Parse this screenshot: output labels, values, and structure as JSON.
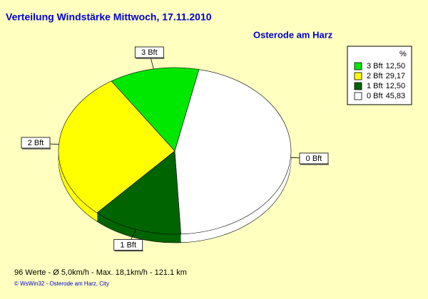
{
  "chart_data": {
    "type": "pie",
    "title": "Verteilung Windstärke  Mittwoch, 17.11.2010",
    "subtitle": "Osterode am Harz",
    "categories": [
      "3 Bft",
      "2 Bft",
      "1 Bft",
      "0 Bft"
    ],
    "values": [
      12.5,
      29.17,
      12.5,
      45.83
    ],
    "value_labels": [
      "12,50",
      "29,17",
      "12,50",
      "45,83"
    ],
    "colors": [
      "#00e800",
      "#ffff00",
      "#006400",
      "#ffffff"
    ],
    "legend_title": "%",
    "legend": "top-right",
    "annotations": [
      "96 Werte   -   Ø 5,0km/h  -  Max. 18,1km/h   -   121.1 km",
      "© WsWin32  -  Osterode am Harz, City"
    ]
  }
}
